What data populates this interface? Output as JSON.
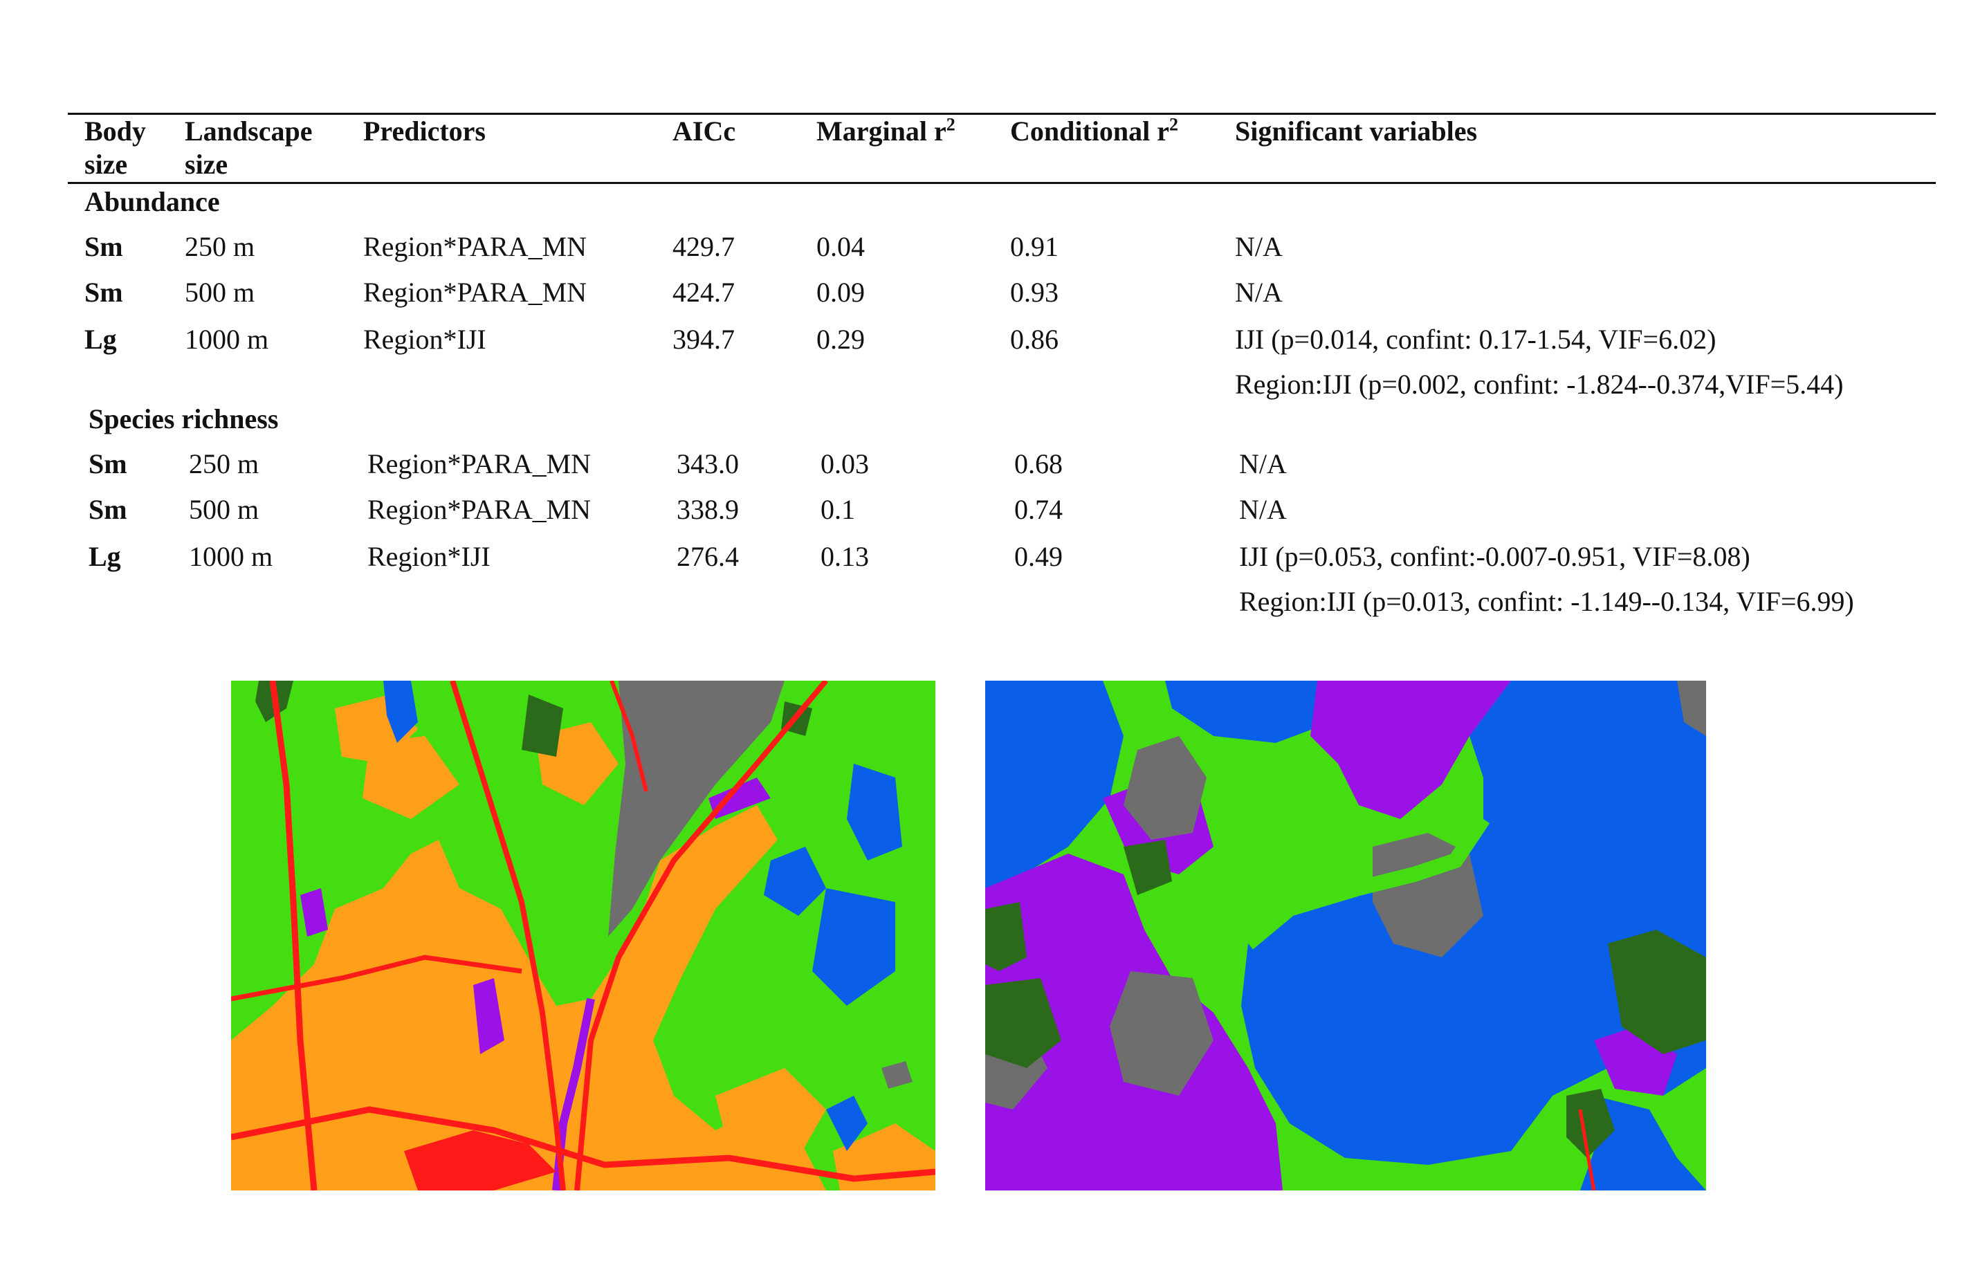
{
  "table": {
    "headers": {
      "body_size": "Body size",
      "landscape_size": "Landscape size",
      "predictors": "Predictors",
      "aicc": "AICc",
      "marginal": "Marginal r",
      "marginal_sup": "2",
      "conditional": "Conditional r",
      "conditional_sup": "2",
      "significant": "Significant variables"
    },
    "sections": [
      {
        "title": "Abundance",
        "rows": [
          {
            "body": "Sm",
            "land": "250 m",
            "pred": "Region*PARA_MN",
            "aicc": "429.7",
            "marg": "0.04",
            "cond": "0.91",
            "sig": [
              "N/A"
            ]
          },
          {
            "body": "Sm",
            "land": "500 m",
            "pred": "Region*PARA_MN",
            "aicc": "424.7",
            "marg": "0.09",
            "cond": "0.93",
            "sig": [
              "N/A"
            ]
          },
          {
            "body": "Lg",
            "land": "1000 m",
            "pred": "Region*IJI",
            "aicc": "394.7",
            "marg": "0.29",
            "cond": "0.86",
            "sig": [
              "IJI (p=0.014, confint: 0.17-1.54, VIF=6.02)",
              "Region:IJI (p=0.002, confint: -1.824--0.374,VIF=5.44)"
            ]
          }
        ]
      },
      {
        "title": "Species richness",
        "rows": [
          {
            "body": "Sm",
            "land": "250 m",
            "pred": "Region*PARA_MN",
            "aicc": "343.0",
            "marg": "0.03",
            "cond": "0.68",
            "sig": [
              "N/A"
            ]
          },
          {
            "body": "Sm",
            "land": "500 m",
            "pred": "Region*PARA_MN",
            "aicc": "338.9",
            "marg": "0.1",
            "cond": "0.74",
            "sig": [
              "N/A"
            ]
          },
          {
            "body": "Lg",
            "land": "1000 m",
            "pred": "Region*IJI",
            "aicc": "276.4",
            "marg": "0.13",
            "cond": "0.49",
            "sig": [
              "IJI (p=0.053, confint:-0.007-0.951, VIF=8.08)",
              "Region:IJI (p=0.013, confint: -1.149--0.134, VIF=6.99)"
            ]
          }
        ]
      }
    ]
  },
  "maps": {
    "colors": {
      "forest": "#44dd11",
      "dark_forest": "#2b6a1a",
      "developed": "#ff9f1a",
      "road": "#ff1a1a",
      "water": "#0b5ee8",
      "wetland": "#9a12e6",
      "barren": "#6e6e6e"
    }
  }
}
